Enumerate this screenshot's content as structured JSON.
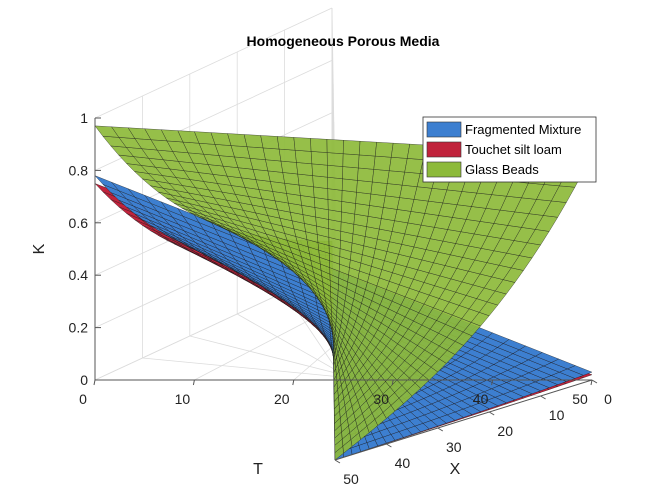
{
  "chart_data": {
    "type": "surface3d",
    "title": "Homogeneous Porous Media",
    "xlabel": "X",
    "tlabel": "T",
    "zlabel": "K",
    "x_ticks": [
      "0",
      "10",
      "20",
      "30",
      "40",
      "50"
    ],
    "t_ticks": [
      "0",
      "10",
      "20",
      "30",
      "40",
      "50"
    ],
    "z_ticks": [
      "0",
      "0.2",
      "0.4",
      "0.6",
      "0.8",
      "1"
    ],
    "xlim": [
      0,
      50
    ],
    "tlim": [
      0,
      50
    ],
    "zlim": [
      0,
      1
    ],
    "grid": true,
    "legend_position": "top-right",
    "series": [
      {
        "name": "Fragmented Mixture",
        "color": "#3d7fd0",
        "K_at_x0_t0": 0.78,
        "K_at_x50_t0": 0.03,
        "K_at_x0_t50": 0.03,
        "K_at_x50_t50": 0.0
      },
      {
        "name": "Touchet silt loam",
        "color": "#c0233c",
        "K_at_x0_t0": 0.75,
        "K_at_x50_t0": 0.02,
        "K_at_x0_t50": 0.02,
        "K_at_x50_t50": 0.0
      },
      {
        "name": "Glass Beads",
        "color": "#8dba3a",
        "K_at_x0_t0": 0.97,
        "K_at_x50_t0": 0.2,
        "K_at_x0_t50": 0.86,
        "K_at_x50_t50": 0.0
      }
    ]
  }
}
